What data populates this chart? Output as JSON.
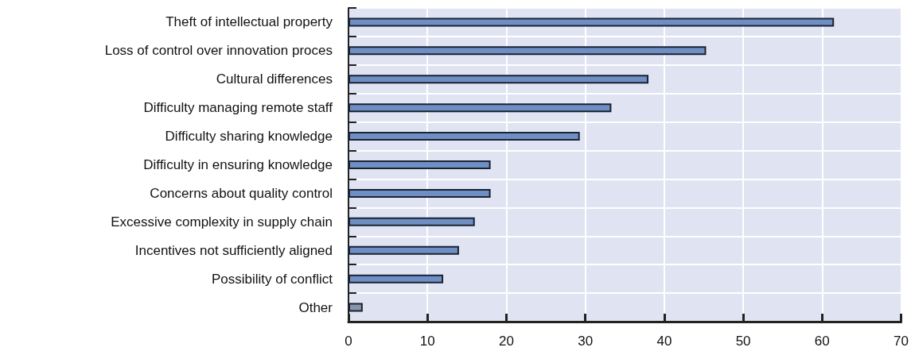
{
  "chart_data": {
    "type": "bar",
    "orientation": "horizontal",
    "categories": [
      "Theft of intellectual property",
      "Loss of control over innovation proces",
      "Cultural differences",
      "Difficulty managing remote staff",
      "Difficulty sharing knowledge",
      "Difficulty in ensuring knowledge",
      "Concerns about quality control",
      "Excessive complexity in supply chain",
      "Incentives not sufficiently aligned",
      "Possibility of conflict",
      "Other"
    ],
    "values": [
      61.5,
      45.3,
      38,
      33.3,
      29.3,
      18,
      18,
      16,
      14,
      12,
      1.8
    ],
    "colors": [
      "#6f8fc4",
      "#6f8fc4",
      "#6f8fc4",
      "#6f8fc4",
      "#6f8fc4",
      "#6f8fc4",
      "#6f8fc4",
      "#6f8fc4",
      "#6f8fc4",
      "#6f8fc4",
      "#8a94a8"
    ],
    "xlim": [
      0,
      70
    ],
    "xticks": [
      0,
      10,
      20,
      30,
      40,
      50,
      60,
      70
    ],
    "grid": true
  }
}
